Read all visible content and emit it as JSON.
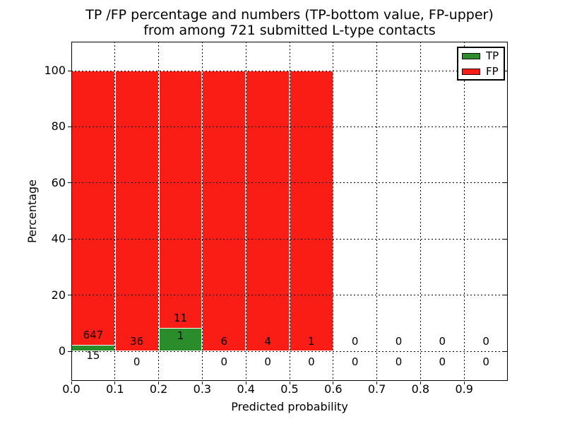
{
  "title": {
    "line1": "TP /FP percentage and numbers (TP-bottom value, FP-upper)",
    "line2": "from among 721 submitted L-type contacts"
  },
  "axes": {
    "xlabel": "Predicted probability",
    "ylabel": "Percentage",
    "x_tick_labels": [
      "0.0",
      "0.1",
      "0.2",
      "0.3",
      "0.4",
      "0.5",
      "0.6",
      "0.7",
      "0.8",
      "0.9"
    ],
    "y_tick_labels": [
      "0",
      "20",
      "40",
      "60",
      "80",
      "100"
    ],
    "y_tick_values": [
      0,
      20,
      40,
      60,
      80,
      100
    ],
    "xlim": [
      0.0,
      1.0
    ],
    "grid_style": "dotted"
  },
  "legend": {
    "position": "upper right",
    "entries": [
      {
        "label": "TP",
        "color": "#2b8c2b"
      },
      {
        "label": "FP",
        "color": "#fa1d15"
      }
    ]
  },
  "colors": {
    "tp": "#2b8c2b",
    "fp": "#fa1d15",
    "bar_edge": "#ffffff",
    "grid": "#000000",
    "background": "#ffffff"
  },
  "chart_data": {
    "type": "bar",
    "stacked": true,
    "normalized_to_percent": true,
    "bin_width": 0.1,
    "bin_starts": [
      0.0,
      0.1,
      0.2,
      0.3,
      0.4,
      0.5,
      0.6,
      0.7,
      0.8,
      0.9
    ],
    "series": [
      {
        "name": "TP",
        "values": [
          15,
          0,
          1,
          0,
          0,
          0,
          0,
          0,
          0,
          0
        ]
      },
      {
        "name": "FP",
        "values": [
          647,
          36,
          11,
          6,
          4,
          1,
          0,
          0,
          0,
          0
        ]
      }
    ],
    "total_contacts": 721,
    "title": "TP /FP percentage and numbers (TP-bottom value, FP-upper) from among 721 submitted L-type contacts",
    "xlabel": "Predicted probability",
    "ylabel": "Percentage",
    "ylim_display": [
      0,
      100
    ],
    "legend_position": "upper right",
    "grid": "on"
  }
}
